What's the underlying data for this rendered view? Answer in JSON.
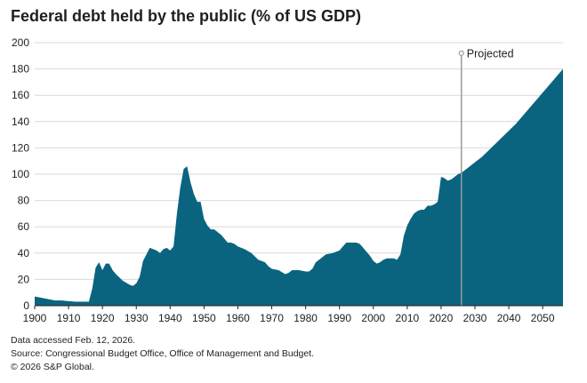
{
  "title": "Federal debt held by the public (% of US GDP)",
  "footer": {
    "accessed": "Data accessed Feb. 12, 2026.",
    "source": "Source: Congressional Budget Office, Office of Management and Budget.",
    "copyright": "© 2026 S&P Global."
  },
  "colors": {
    "area": "#0a6480",
    "grid": "#d9d9d9",
    "projection_line": "#9a9a9a",
    "axis": "#222222"
  },
  "chart_data": {
    "type": "area",
    "title": "Federal debt held by the public (% of US GDP)",
    "xlabel": "",
    "ylabel": "",
    "xlim": [
      1900,
      2056
    ],
    "ylim": [
      0,
      200
    ],
    "x_ticks": [
      1900,
      1910,
      1920,
      1930,
      1940,
      1950,
      1960,
      1970,
      1980,
      1990,
      2000,
      2010,
      2020,
      2030,
      2040,
      2050
    ],
    "y_ticks": [
      0,
      20,
      40,
      60,
      80,
      100,
      120,
      140,
      160,
      180,
      200
    ],
    "grid": "horizontal",
    "annotation": {
      "label": "Projected",
      "x": 2026,
      "y": 192
    },
    "series": [
      {
        "name": "Federal debt held by the public (% of GDP)",
        "x": [
          1900,
          1902,
          1904,
          1906,
          1908,
          1910,
          1912,
          1914,
          1916,
          1917,
          1918,
          1919,
          1920,
          1921,
          1922,
          1923,
          1924,
          1926,
          1928,
          1929,
          1930,
          1931,
          1932,
          1933,
          1934,
          1935,
          1936,
          1937,
          1938,
          1939,
          1940,
          1941,
          1942,
          1943,
          1944,
          1945,
          1946,
          1947,
          1948,
          1949,
          1950,
          1951,
          1952,
          1953,
          1954,
          1955,
          1956,
          1957,
          1958,
          1959,
          1960,
          1962,
          1964,
          1966,
          1968,
          1969,
          1970,
          1972,
          1974,
          1975,
          1976,
          1978,
          1980,
          1981,
          1982,
          1983,
          1984,
          1986,
          1988,
          1990,
          1991,
          1992,
          1993,
          1994,
          1995,
          1996,
          1997,
          1998,
          1999,
          2000,
          2001,
          2002,
          2003,
          2004,
          2006,
          2007,
          2008,
          2009,
          2010,
          2011,
          2012,
          2013,
          2014,
          2015,
          2016,
          2017,
          2018,
          2019,
          2020,
          2021,
          2022,
          2023,
          2024,
          2025,
          2026,
          2028,
          2030,
          2032,
          2034,
          2036,
          2038,
          2040,
          2042,
          2044,
          2046,
          2048,
          2050,
          2052,
          2054,
          2056
        ],
        "values": [
          7,
          6,
          5,
          4,
          4,
          3.5,
          3,
          3,
          3,
          13,
          29,
          33,
          27,
          32,
          32,
          27,
          24,
          19,
          16,
          15,
          17,
          22,
          34,
          39,
          44,
          43,
          42,
          40,
          43,
          44,
          42,
          45,
          70,
          90,
          104,
          106,
          94,
          85,
          79,
          79,
          66,
          61,
          58,
          58,
          56,
          54,
          51,
          48,
          48,
          47,
          45,
          43,
          40,
          35,
          33,
          30,
          28,
          27,
          24,
          25,
          27,
          27,
          26,
          26,
          28,
          33,
          35,
          39,
          40,
          42,
          45,
          48,
          48,
          48,
          48,
          47,
          44,
          41,
          38,
          34,
          32,
          33,
          35,
          36,
          36,
          35,
          39,
          53,
          61,
          66,
          70,
          72,
          73,
          73,
          76,
          76,
          77,
          79,
          98,
          97,
          95,
          96,
          98,
          100,
          101,
          105,
          109,
          113,
          118,
          123,
          128,
          133,
          138,
          144,
          150,
          156,
          162,
          168,
          174,
          180
        ]
      }
    ]
  }
}
